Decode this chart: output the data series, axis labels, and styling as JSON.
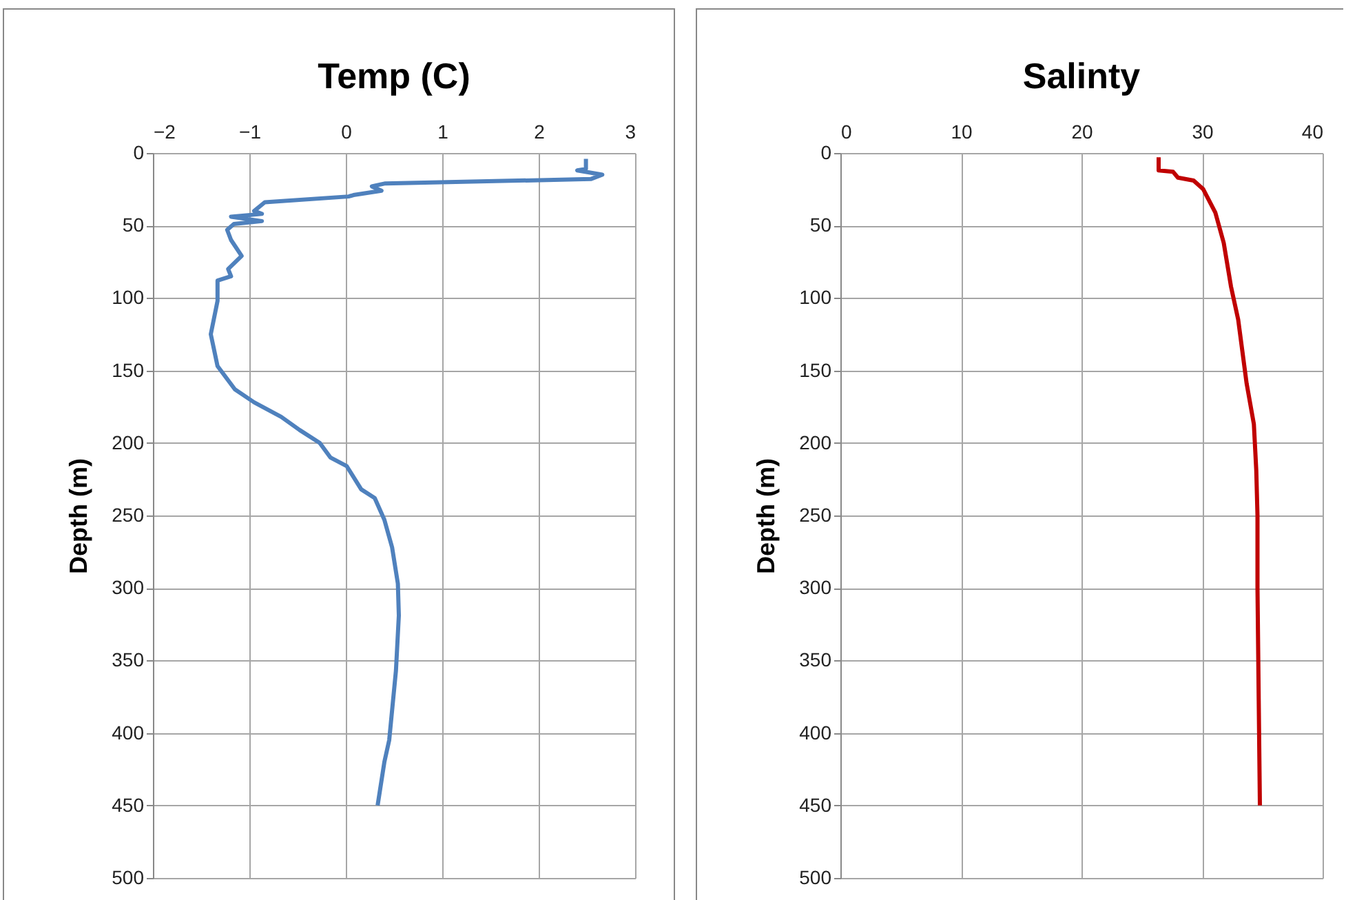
{
  "chart_data": [
    {
      "type": "line",
      "title": "Temp (C)",
      "ylabel": "Depth (m)",
      "xlim": [
        -2,
        3
      ],
      "xticks": [
        -2,
        -1,
        0,
        1,
        2,
        3
      ],
      "ylim": [
        500,
        0
      ],
      "yticks": [
        0,
        50,
        100,
        150,
        200,
        250,
        300,
        350,
        400,
        450,
        500
      ],
      "grid": true,
      "series": [
        {
          "color": "#4f81bd",
          "x": [
            2.49,
            2.49,
            2.4,
            2.66,
            2.54,
            0.41,
            0.27,
            0.37,
            0.08,
            0.03,
            -0.84,
            -0.95,
            -0.87,
            -1.19,
            -0.87,
            -1.16,
            -1.23,
            -1.19,
            -1.08,
            -1.22,
            -1.19,
            -1.33,
            -1.33,
            -1.4,
            -1.33,
            -1.15,
            -0.95,
            -0.67,
            -0.48,
            -0.27,
            -0.16,
            0.01,
            0.16,
            0.3,
            0.4,
            0.48,
            0.54,
            0.55,
            0.52,
            0.45,
            0.4,
            0.33
          ],
          "values": [
            4,
            11,
            12,
            15,
            18,
            21,
            23,
            26,
            29,
            30,
            34,
            40,
            42,
            44,
            47,
            49,
            53,
            60,
            71,
            80,
            85,
            88,
            102,
            125,
            147,
            163,
            172,
            182,
            191,
            200,
            210,
            216,
            232,
            238,
            253,
            272,
            297,
            319,
            357,
            405,
            420,
            450
          ]
        }
      ]
    },
    {
      "type": "line",
      "title": "Salinty",
      "ylabel": "Depth (m)",
      "xlim": [
        0,
        40
      ],
      "xticks": [
        0,
        10,
        20,
        30,
        40
      ],
      "ylim": [
        500,
        0
      ],
      "yticks": [
        0,
        50,
        100,
        150,
        200,
        250,
        300,
        350,
        400,
        450,
        500
      ],
      "grid": true,
      "series": [
        {
          "color": "#c00000",
          "x": [
            26.4,
            26.4,
            27.6,
            28.0,
            29.3,
            30.1,
            31.1,
            31.8,
            32.4,
            33.0,
            33.7,
            34.3,
            34.5,
            34.6,
            34.6,
            34.8
          ],
          "values": [
            3,
            12,
            13,
            17,
            19,
            25,
            41,
            62,
            92,
            115,
            159,
            187,
            219,
            250,
            300,
            450
          ]
        }
      ]
    }
  ]
}
